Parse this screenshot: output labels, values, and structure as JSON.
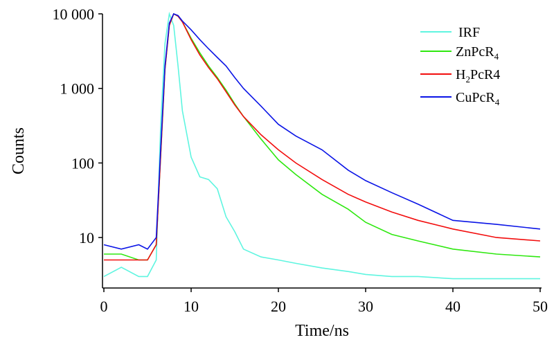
{
  "chart_data": {
    "type": "line",
    "title": "",
    "xlabel": "Time/ns",
    "ylabel": "Counts",
    "xscale": "linear",
    "yscale": "log",
    "xlim": [
      0,
      50
    ],
    "ylim": [
      2,
      10000
    ],
    "xticks": [
      0,
      10,
      20,
      30,
      40,
      50
    ],
    "xtick_labels": [
      "0",
      "10",
      "20",
      "30",
      "40",
      "50"
    ],
    "yticks": [
      10,
      100,
      1000,
      10000
    ],
    "ytick_labels": [
      "10",
      "100",
      "1 000",
      "10 000"
    ],
    "grid": false,
    "legend_position": "top-right",
    "x": [
      0,
      2,
      4,
      5,
      6,
      6.5,
      7,
      7.5,
      8,
      8.5,
      9,
      10,
      11,
      12,
      13,
      14,
      15,
      16,
      18,
      20,
      22,
      25,
      28,
      30,
      33,
      36,
      40,
      45,
      50
    ],
    "series": [
      {
        "name": "IRF",
        "label_main": "IRF",
        "label_sub": "",
        "label_tail": "",
        "color": "#5ef5e0",
        "values": [
          3,
          4,
          3,
          3,
          5,
          300,
          4000,
          10000,
          7000,
          2000,
          500,
          120,
          65,
          60,
          45,
          19,
          12,
          7,
          5.5,
          5,
          4.5,
          3.9,
          3.5,
          3.2,
          3,
          3,
          2.8,
          2.8,
          2.8
        ]
      },
      {
        "name": "ZnPcR4",
        "label_main": "ZnPcR",
        "label_sub": "",
        "label_tail": "4",
        "color": "#2ee80f",
        "values": [
          6,
          6,
          5,
          5,
          8,
          120,
          1800,
          7000,
          10000,
          9300,
          7800,
          4700,
          3000,
          2000,
          1400,
          950,
          620,
          420,
          210,
          110,
          70,
          38,
          24,
          16,
          11,
          9,
          7,
          6,
          5.5
        ]
      },
      {
        "name": "H2PcR4",
        "label_main": "H",
        "label_sub": "2",
        "label_tail": "PcR4",
        "color": "#f20d0d",
        "values": [
          5,
          5,
          5,
          5,
          8,
          120,
          1800,
          7000,
          10000,
          9300,
          7800,
          4500,
          2800,
          1900,
          1350,
          900,
          600,
          420,
          240,
          150,
          100,
          60,
          38,
          30,
          22,
          17,
          13,
          10,
          9
        ]
      },
      {
        "name": "CuPcR4",
        "label_main": "CuPcR",
        "label_sub": "",
        "label_tail": "4",
        "color": "#0a14e6",
        "values": [
          8,
          7,
          8,
          7,
          10,
          150,
          2000,
          7500,
          10000,
          9500,
          8000,
          6100,
          4500,
          3400,
          2600,
          2000,
          1400,
          1000,
          580,
          330,
          230,
          150,
          80,
          58,
          40,
          28,
          17,
          15,
          13
        ]
      }
    ]
  }
}
